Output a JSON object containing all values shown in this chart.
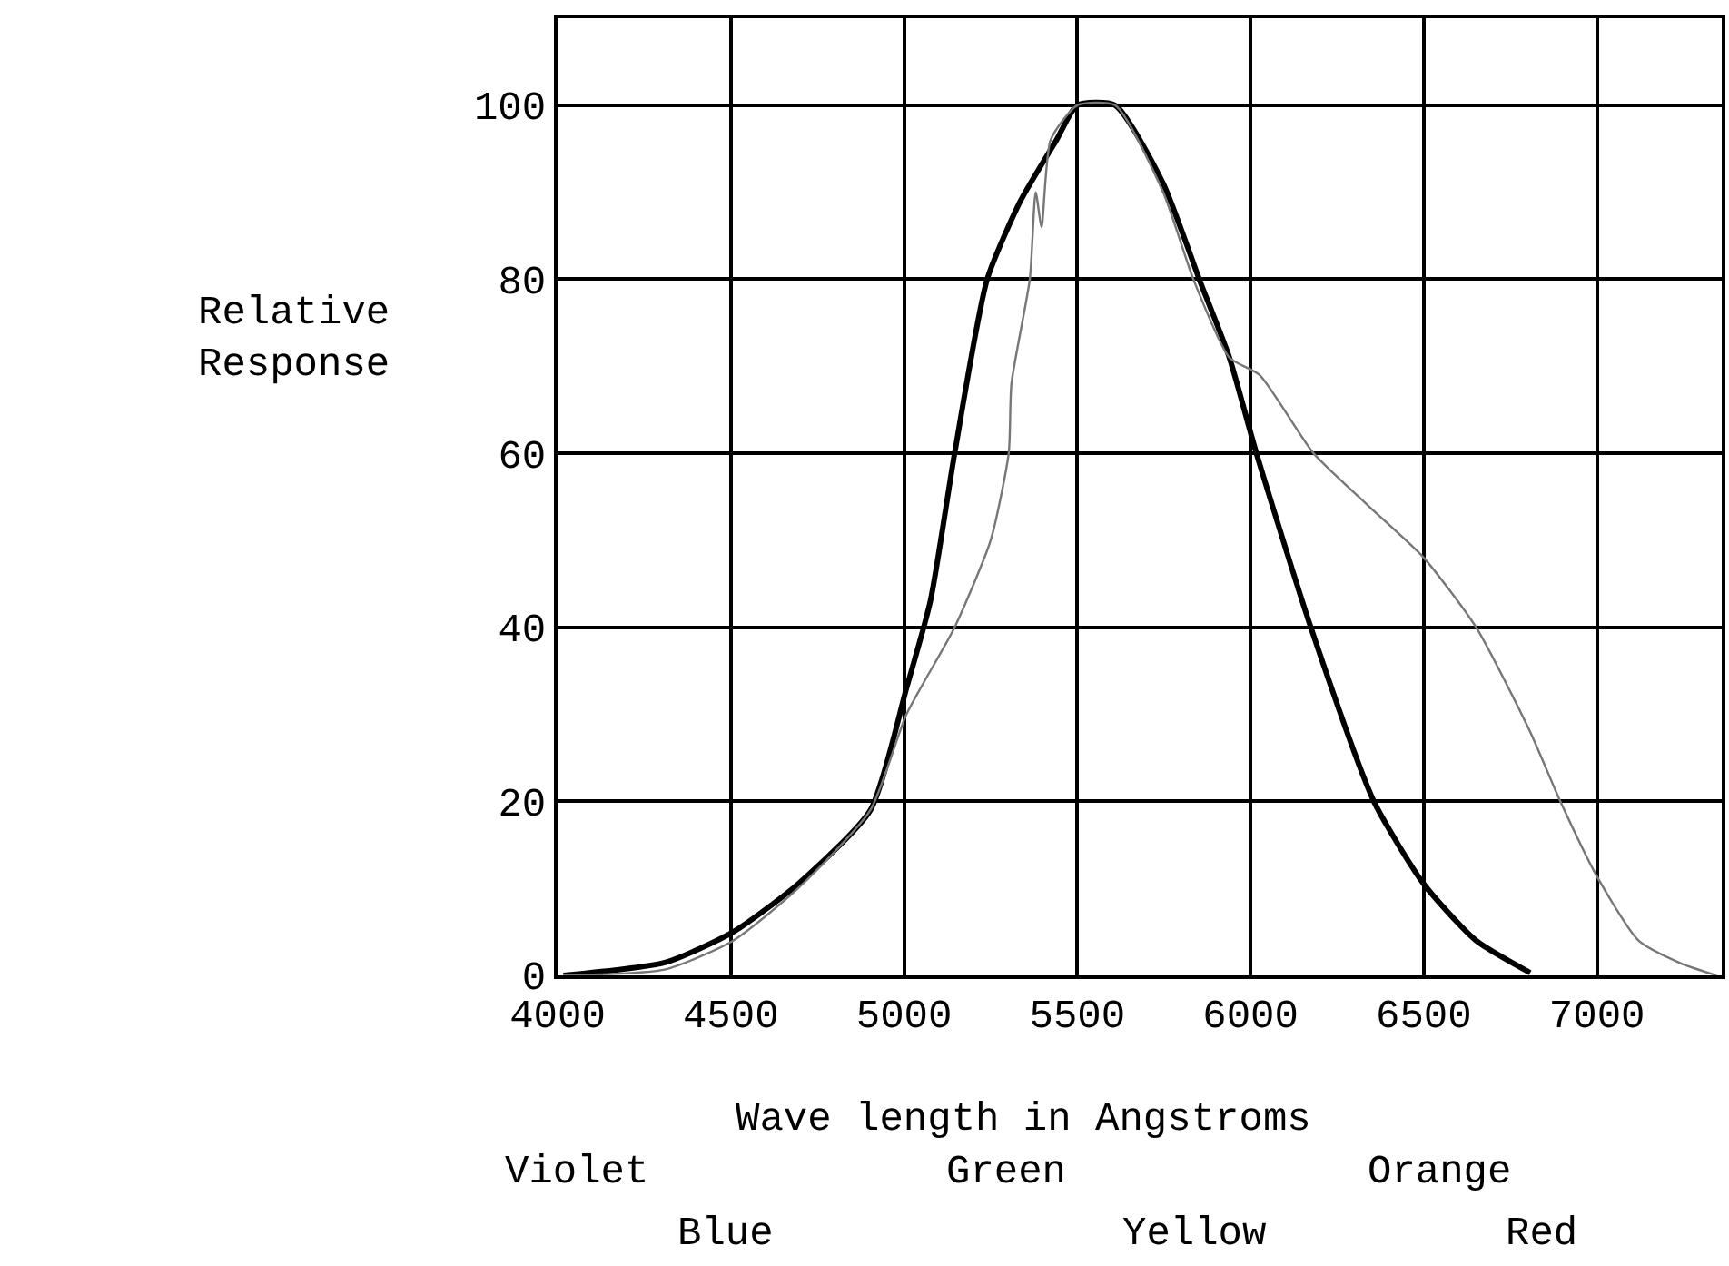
{
  "chart_data": {
    "type": "line",
    "xlabel": "Wave length in Angstroms",
    "ylabel": "Relative Response",
    "xlim": [
      4000,
      7360
    ],
    "xticks": [
      4000,
      4500,
      5000,
      5500,
      6000,
      6500,
      7000
    ],
    "ylim": [
      0,
      110
    ],
    "yticks": [
      0,
      20,
      40,
      60,
      80,
      100
    ],
    "grid": true,
    "marker": "none",
    "line_style": "solid",
    "series": [
      {
        "color": "#000000",
        "x": [
          4017,
          4312,
          4507,
          4694,
          4903,
          5007,
          5076,
          5146,
          5240,
          5336,
          5440,
          5500,
          5609,
          5748,
          5852,
          5939,
          6017,
          6174,
          6356,
          6500,
          6651,
          6807
        ],
        "values": [
          0,
          1.5,
          5,
          10.5,
          19,
          33,
          43,
          60,
          80,
          89,
          96,
          100,
          100,
          91,
          80,
          71,
          60,
          40,
          20,
          10.5,
          4,
          0.3
        ]
      },
      {
        "color": "#777777",
        "x": [
          4017,
          4312,
          4507,
          4694,
          4903,
          5007,
          5146,
          5250,
          5302,
          5310,
          5363,
          5380,
          5397,
          5423,
          5500,
          5609,
          5748,
          5835,
          5939,
          6026,
          6182,
          6339,
          6500,
          6651,
          6807,
          6894,
          6998,
          7120,
          7241,
          7345
        ],
        "values": [
          0,
          0.7,
          4,
          10,
          19,
          30,
          40,
          50,
          60,
          68,
          80,
          90,
          86,
          96,
          100,
          100,
          90,
          80,
          71,
          69,
          60,
          54,
          48,
          40,
          28,
          20,
          11.5,
          4,
          1.4,
          0
        ]
      }
    ],
    "annotations": [
      "Violet",
      "Green",
      "Orange",
      "Blue",
      "Yellow",
      "Red"
    ]
  }
}
